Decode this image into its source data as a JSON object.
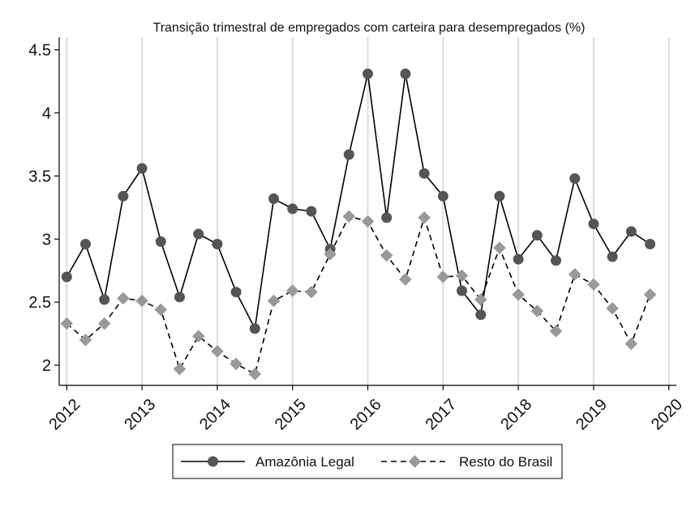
{
  "chart_data": {
    "type": "line",
    "title": "Transição trimestral de empregados com carteira para desempregados (%)",
    "xlabel": "",
    "ylabel": "",
    "x": [
      2012.0,
      2012.25,
      2012.5,
      2012.75,
      2013.0,
      2013.25,
      2013.5,
      2013.75,
      2014.0,
      2014.25,
      2014.5,
      2014.75,
      2015.0,
      2015.25,
      2015.5,
      2015.75,
      2016.0,
      2016.25,
      2016.5,
      2016.75,
      2017.0,
      2017.25,
      2017.5,
      2017.75,
      2018.0,
      2018.25,
      2018.5,
      2018.75,
      2019.0,
      2019.25,
      2019.5,
      2019.75
    ],
    "xlim": [
      2011.9,
      2020.1
    ],
    "ylim": [
      1.84,
      4.6
    ],
    "x_ticks": [
      2012,
      2013,
      2014,
      2015,
      2016,
      2017,
      2018,
      2019,
      2020
    ],
    "y_ticks": [
      2,
      2.5,
      3,
      3.5,
      4,
      4.5
    ],
    "x_grid": true,
    "y_grid": false,
    "legend_position": "bottom",
    "series": [
      {
        "name": "Amazônia Legal",
        "color": "#555555",
        "line": "solid",
        "marker": "circle",
        "values": [
          2.7,
          2.96,
          2.52,
          3.34,
          3.56,
          2.98,
          2.54,
          3.04,
          2.96,
          2.58,
          2.29,
          3.32,
          3.24,
          3.22,
          2.92,
          3.67,
          4.31,
          3.17,
          4.31,
          3.52,
          3.34,
          2.59,
          2.4,
          3.34,
          2.84,
          3.03,
          2.83,
          3.48,
          3.12,
          2.86,
          3.06,
          2.96
        ]
      },
      {
        "name": "Resto do Brasil",
        "color": "#999999",
        "line": "dashed",
        "marker": "diamond",
        "values": [
          2.33,
          2.2,
          2.33,
          2.53,
          2.51,
          2.44,
          1.97,
          2.23,
          2.11,
          2.01,
          1.93,
          2.51,
          2.59,
          2.58,
          2.88,
          3.18,
          3.14,
          2.87,
          2.68,
          3.17,
          2.7,
          2.71,
          2.52,
          2.93,
          2.56,
          2.43,
          2.27,
          2.72,
          2.64,
          2.45,
          2.17,
          2.56
        ]
      }
    ]
  }
}
